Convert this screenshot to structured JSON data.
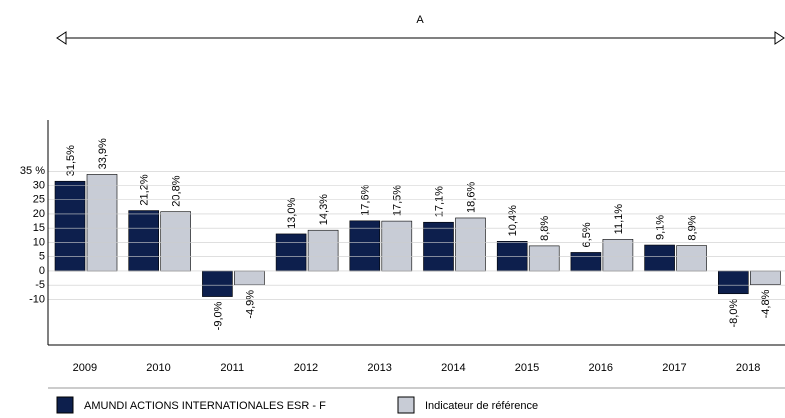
{
  "chart_data": {
    "type": "bar",
    "annotation": "A",
    "categories": [
      "2009",
      "2010",
      "2011",
      "2012",
      "2013",
      "2014",
      "2015",
      "2016",
      "2017",
      "2018"
    ],
    "series": [
      {
        "name": "AMUNDI ACTIONS INTERNATIONALES ESR - F",
        "color": "#0d1f4d",
        "values": [
          31.5,
          21.2,
          -9.0,
          13.0,
          17.6,
          17.1,
          10.4,
          6.5,
          9.1,
          -8.0
        ],
        "value_labels": [
          "31,5%",
          "21,2%",
          "-9,0%",
          "13,0%",
          "17,6%",
          "17,1%",
          "10,4%",
          "6,5%",
          "9,1%",
          "-8,0%"
        ]
      },
      {
        "name": "Indicateur de référence",
        "color": "#c8ccd6",
        "values": [
          33.9,
          20.8,
          -4.9,
          14.3,
          17.5,
          18.6,
          8.8,
          11.1,
          8.9,
          -4.8
        ],
        "value_labels": [
          "33,9%",
          "20,8%",
          "-4,9%",
          "14,3%",
          "17,5%",
          "18,6%",
          "8,8%",
          "11,1%",
          "8,9%",
          "-4,8%"
        ]
      }
    ],
    "ylim": [
      -26,
      53
    ],
    "yticks": [
      {
        "value": 35,
        "label": "35 %"
      },
      30,
      25,
      20,
      15,
      10,
      5,
      0,
      -5,
      -10
    ],
    "grid": true
  }
}
